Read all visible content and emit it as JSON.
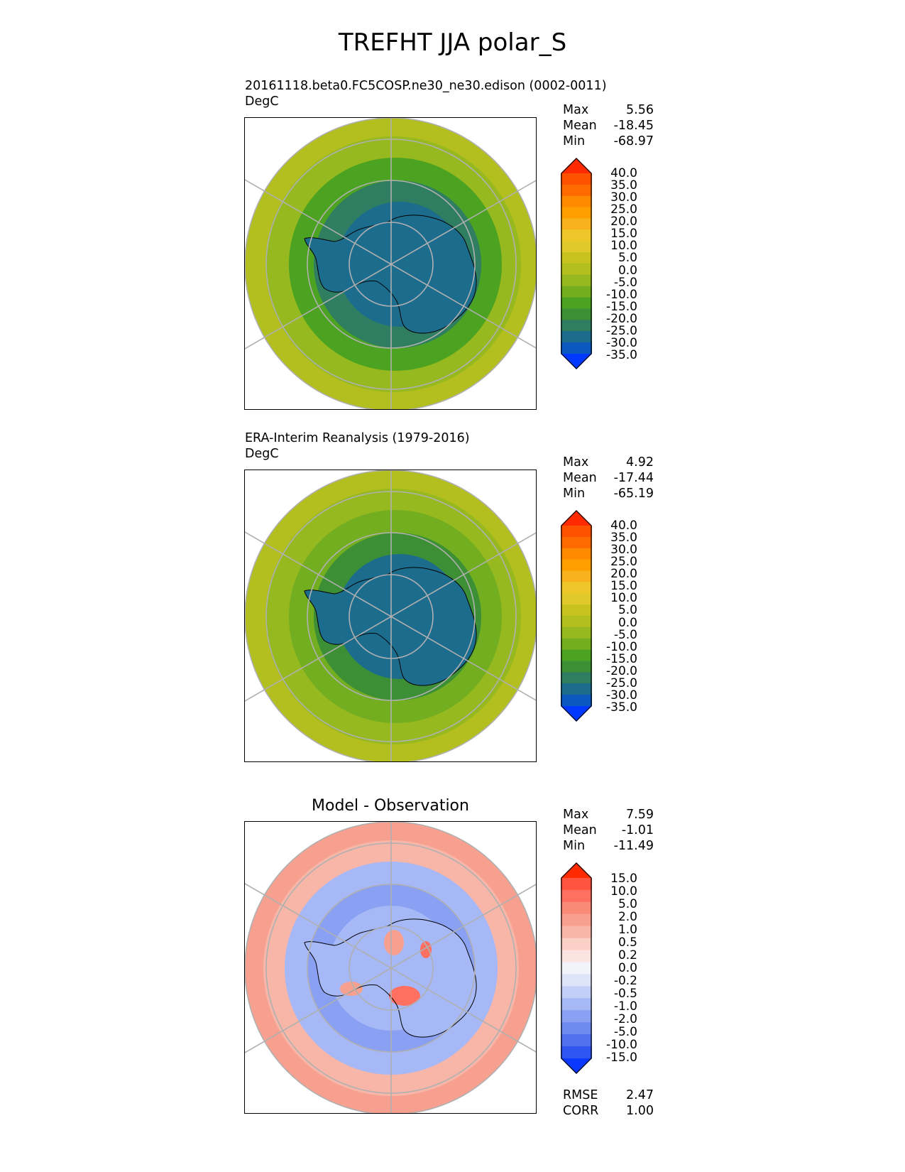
{
  "figure": {
    "title": "TREFHT JJA polar_S"
  },
  "panels": [
    {
      "id": "model",
      "title": "20161118.beta0.FC5COSP.ne30_ne30.edison (0002-0011)",
      "units": "DegC",
      "stats": [
        {
          "k": "Max",
          "v": "5.56"
        },
        {
          "k": "Mean",
          "v": "-18.45"
        },
        {
          "k": "Min",
          "v": "-68.97"
        }
      ]
    },
    {
      "id": "obs",
      "title": "ERA-Interim Reanalysis (1979-2016)",
      "units": "DegC",
      "stats": [
        {
          "k": "Max",
          "v": "4.92"
        },
        {
          "k": "Mean",
          "v": "-17.44"
        },
        {
          "k": "Min",
          "v": "-65.19"
        }
      ]
    },
    {
      "id": "diff",
      "title": "Model - Observation",
      "units": "",
      "stats": [
        {
          "k": "Max",
          "v": "7.59"
        },
        {
          "k": "Mean",
          "v": "-1.01"
        },
        {
          "k": "Min",
          "v": "-11.49"
        }
      ],
      "metrics": [
        {
          "k": "RMSE",
          "v": "2.47"
        },
        {
          "k": "CORR",
          "v": "1.00"
        }
      ]
    }
  ],
  "chart_data": [
    {
      "type": "heatmap",
      "title": "20161118.beta0.FC5COSP.ne30_ne30.edison (0002-0011)",
      "units": "DegC",
      "projection": "south-polar-stereographic",
      "colorbar_ticks": [
        "40.0",
        "35.0",
        "30.0",
        "25.0",
        "20.0",
        "15.0",
        "10.0",
        "5.0",
        "0.0",
        "-5.0",
        "-10.0",
        "-15.0",
        "-20.0",
        "-25.0",
        "-30.0",
        "-35.0"
      ],
      "colorbar_colors": [
        "#ff2a00",
        "#ff5200",
        "#ff6a00",
        "#ff8a00",
        "#ffa000",
        "#f7b21e",
        "#f0c72a",
        "#e0c92a",
        "#c8c21e",
        "#b3bf1f",
        "#96b91f",
        "#73ae20",
        "#4ca221",
        "#3c8f34",
        "#2f7e62",
        "#1c6c8e",
        "#0b58c0",
        "#0038ff"
      ],
      "ring_values": [
        -5,
        -10,
        -20,
        -30,
        -35
      ],
      "max": 5.56,
      "mean": -18.45,
      "min": -68.97
    },
    {
      "type": "heatmap",
      "title": "ERA-Interim Reanalysis (1979-2016)",
      "units": "DegC",
      "projection": "south-polar-stereographic",
      "colorbar_ticks": [
        "40.0",
        "35.0",
        "30.0",
        "25.0",
        "20.0",
        "15.0",
        "10.0",
        "5.0",
        "0.0",
        "-5.0",
        "-10.0",
        "-15.0",
        "-20.0",
        "-25.0",
        "-30.0",
        "-35.0"
      ],
      "colorbar_colors": [
        "#ff2a00",
        "#ff5200",
        "#ff6a00",
        "#ff8a00",
        "#ffa000",
        "#f7b21e",
        "#f0c72a",
        "#e0c92a",
        "#c8c21e",
        "#b3bf1f",
        "#96b91f",
        "#73ae20",
        "#4ca221",
        "#3c8f34",
        "#2f7e62",
        "#1c6c8e",
        "#0b58c0",
        "#0038ff"
      ],
      "ring_values": [
        -5,
        -10,
        -15,
        -25,
        -35
      ],
      "max": 4.92,
      "mean": -17.44,
      "min": -65.19
    },
    {
      "type": "heatmap",
      "title": "Model - Observation",
      "units": "",
      "projection": "south-polar-stereographic",
      "colorbar_ticks": [
        "15.0",
        "10.0",
        "5.0",
        "2.0",
        "1.0",
        "0.5",
        "0.2",
        "0.0",
        "-0.2",
        "-0.5",
        "-1.0",
        "-2.0",
        "-5.0",
        "-10.0",
        "-15.0"
      ],
      "colorbar_colors": [
        "#ff2a00",
        "#ff5540",
        "#ff7060",
        "#fa8a78",
        "#f8a090",
        "#f8b6a8",
        "#f9cfc6",
        "#fbe4df",
        "#f2f2fa",
        "#dde3f8",
        "#c3cff7",
        "#a6b8f6",
        "#89a0f3",
        "#6e8af0",
        "#5070ee",
        "#2f56f0",
        "#0a38ff"
      ],
      "ring_values": [
        1,
        0.5,
        -2,
        -5,
        -2
      ],
      "max": 7.59,
      "mean": -1.01,
      "min": -11.49,
      "rmse": 2.47,
      "corr": 1.0
    }
  ]
}
